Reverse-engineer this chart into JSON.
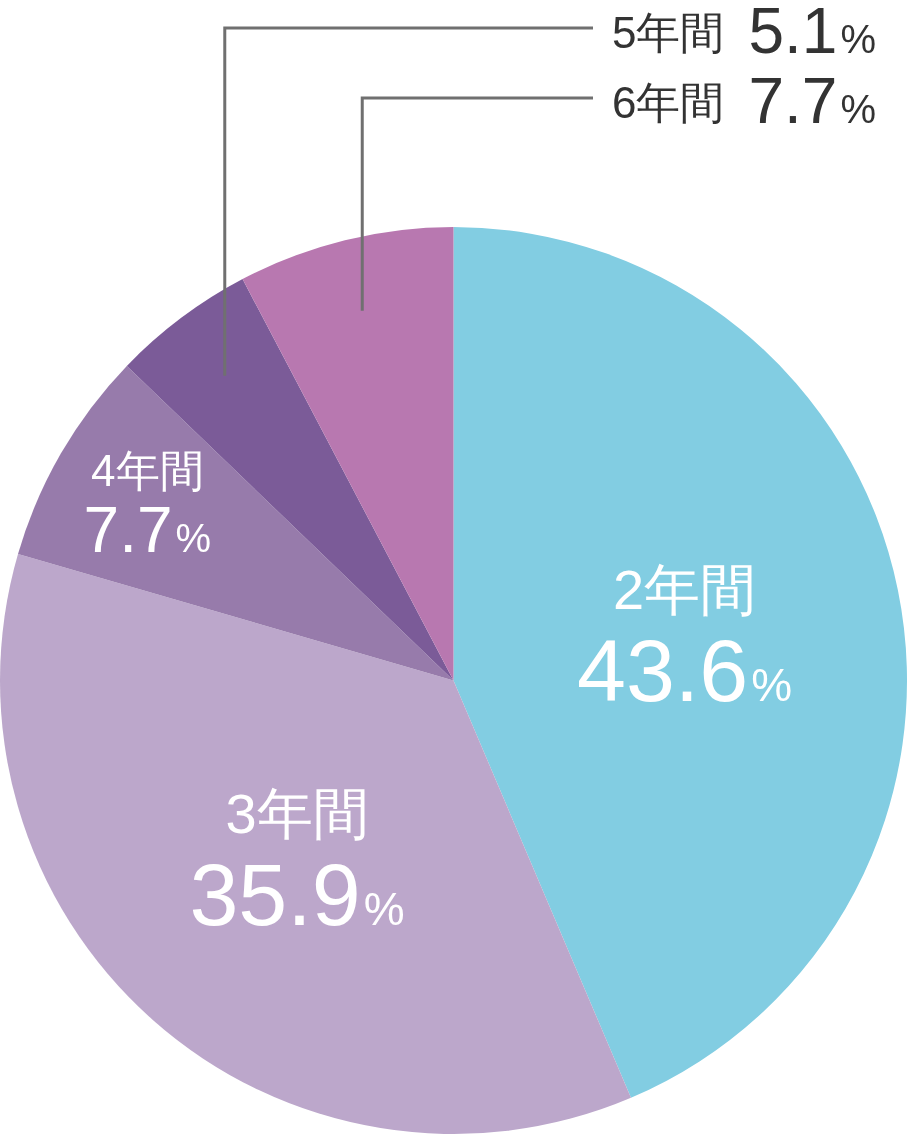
{
  "chart_data": {
    "type": "pie",
    "categories": [
      "2年間",
      "3年間",
      "4年間",
      "5年間",
      "6年間"
    ],
    "values": [
      43.6,
      35.9,
      7.7,
      5.1,
      7.7
    ],
    "colors": [
      "#82cde2",
      "#bca7cb",
      "#977bab",
      "#7b5b98",
      "#b878b0"
    ],
    "value_labels": [
      "43.6%",
      "35.9%",
      "7.7%",
      "5.1%",
      "7.7%"
    ]
  }
}
